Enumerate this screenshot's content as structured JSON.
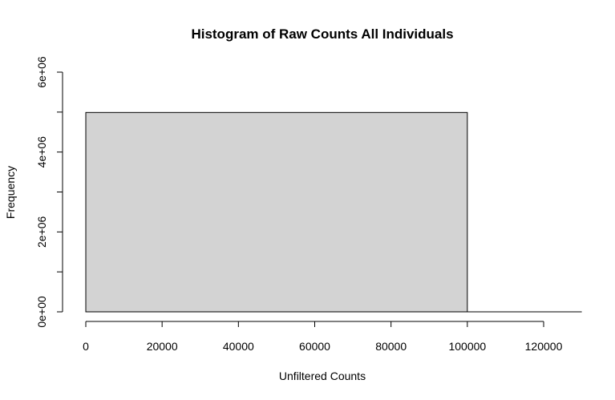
{
  "chart_data": {
    "type": "bar",
    "title": "Histogram of Raw Counts All Individuals",
    "xlabel": "Unfiltered Counts",
    "ylabel": "Frequency",
    "bins": [
      {
        "x0": 0,
        "x1": 100000,
        "count": 4990000
      },
      {
        "x0": 100000,
        "x1": 130000,
        "count": 0
      }
    ],
    "xlim": [
      0,
      130000
    ],
    "ylim": [
      0,
      6000000
    ],
    "x_ticks": [
      0,
      20000,
      40000,
      60000,
      80000,
      100000,
      120000
    ],
    "x_tick_labels": [
      "0",
      "20000",
      "40000",
      "60000",
      "80000",
      "100000",
      "120000"
    ],
    "y_ticks": [
      0,
      1000000,
      2000000,
      3000000,
      4000000,
      5000000,
      6000000
    ],
    "y_tick_labels": [
      "0e+00",
      "",
      "2e+06",
      "",
      "4e+06",
      "",
      "6e+06"
    ],
    "grid": false,
    "bar_fill": "#d3d3d3",
    "bar_stroke": "#000000"
  }
}
